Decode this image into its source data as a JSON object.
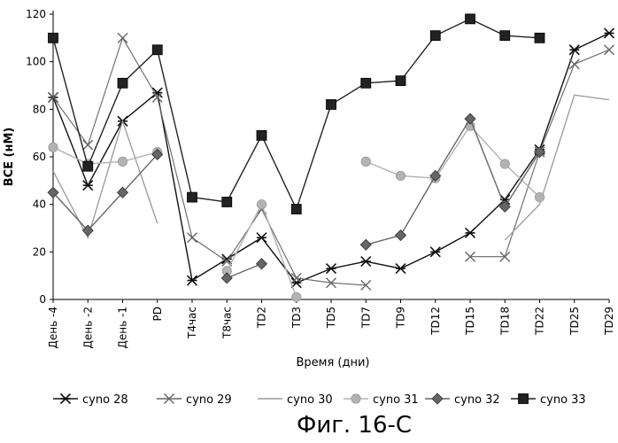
{
  "chart_data": {
    "type": "line",
    "xlabel": "Время (дни)",
    "ylabel": "BCE (нМ)",
    "caption": "Фиг. 16-C",
    "ylim": [
      0,
      120
    ],
    "yticks": [
      0,
      20,
      40,
      60,
      80,
      100,
      120
    ],
    "categories": [
      "День -4",
      "День -2",
      "День -1",
      "PD",
      "T4час",
      "T8час",
      "TD2",
      "TD3",
      "TD5",
      "TD7",
      "TD9",
      "TD12",
      "TD15",
      "TD18",
      "TD22",
      "TD25",
      "TD29"
    ],
    "grid": false,
    "legend_position": "bottom",
    "series": [
      {
        "name": "cyno 28",
        "marker": "asterisk",
        "color": "#111111",
        "values": [
          85,
          48,
          75,
          87,
          8,
          17,
          26,
          7,
          13,
          16,
          13,
          20,
          28,
          42,
          63,
          105,
          112
        ]
      },
      {
        "name": "cyno 29",
        "marker": "x",
        "color": "#666666",
        "values": [
          85,
          65,
          110,
          85,
          26,
          16,
          38,
          9,
          7,
          6,
          null,
          null,
          18,
          18,
          62,
          99,
          105
        ]
      },
      {
        "name": "cyno 30",
        "marker": "none",
        "color": "#999999",
        "values": [
          54,
          26,
          75,
          32,
          null,
          null,
          null,
          null,
          null,
          null,
          null,
          null,
          null,
          25,
          40,
          86,
          84
        ]
      },
      {
        "name": "cyno 31",
        "marker": "circle",
        "color": "#b3b3b3",
        "values": [
          64,
          57,
          58,
          62,
          null,
          12,
          40,
          1,
          null,
          58,
          52,
          51,
          73,
          57,
          43,
          null,
          null
        ]
      },
      {
        "name": "cyno 32",
        "marker": "diamond",
        "color": "#666666",
        "values": [
          45,
          29,
          45,
          61,
          null,
          9,
          15,
          null,
          null,
          23,
          27,
          52,
          76,
          39,
          62,
          null,
          null
        ]
      },
      {
        "name": "cyno 33",
        "marker": "square",
        "color": "#222222",
        "values": [
          110,
          56,
          91,
          105,
          43,
          41,
          69,
          38,
          82,
          91,
          92,
          111,
          118,
          111,
          110,
          null,
          null
        ]
      }
    ]
  }
}
